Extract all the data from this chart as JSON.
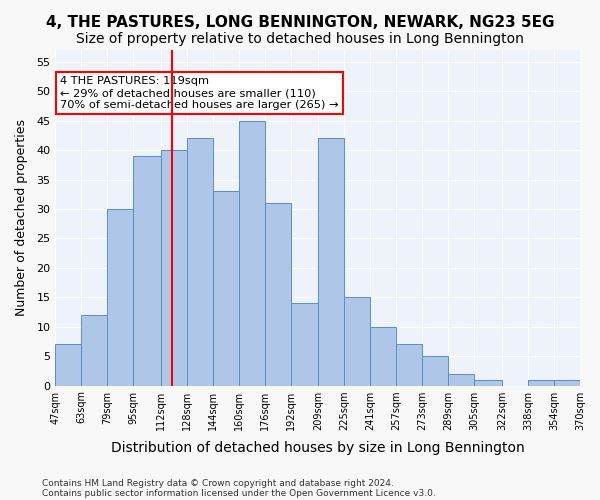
{
  "title1": "4, THE PASTURES, LONG BENNINGTON, NEWARK, NG23 5EG",
  "title2": "Size of property relative to detached houses in Long Bennington",
  "xlabel": "Distribution of detached houses by size in Long Bennington",
  "ylabel": "Number of detached properties",
  "footer1": "Contains HM Land Registry data © Crown copyright and database right 2024.",
  "footer2": "Contains public sector information licensed under the Open Government Licence v3.0.",
  "bin_edges": [
    47,
    63,
    79,
    95,
    112,
    128,
    144,
    160,
    176,
    192,
    209,
    225,
    241,
    257,
    273,
    289,
    305,
    322,
    338,
    354,
    370
  ],
  "bar_heights": [
    7,
    12,
    30,
    39,
    40,
    42,
    33,
    45,
    31,
    14,
    42,
    15,
    10,
    7,
    5,
    2,
    1,
    0,
    1,
    1
  ],
  "bar_color": "#aec6e8",
  "bar_edge_color": "#5a8fc2",
  "red_line_x": 119,
  "annotation_text": "4 THE PASTURES: 119sqm\n← 29% of detached houses are smaller (110)\n70% of semi-detached houses are larger (265) →",
  "annotation_box_color": "white",
  "annotation_box_edge_color": "red",
  "ylim": [
    0,
    57
  ],
  "yticks": [
    0,
    5,
    10,
    15,
    20,
    25,
    30,
    35,
    40,
    45,
    50,
    55
  ],
  "bg_color": "#eef2fb",
  "grid_color": "white",
  "title1_fontsize": 11,
  "title2_fontsize": 10,
  "xlabel_fontsize": 10,
  "ylabel_fontsize": 9
}
